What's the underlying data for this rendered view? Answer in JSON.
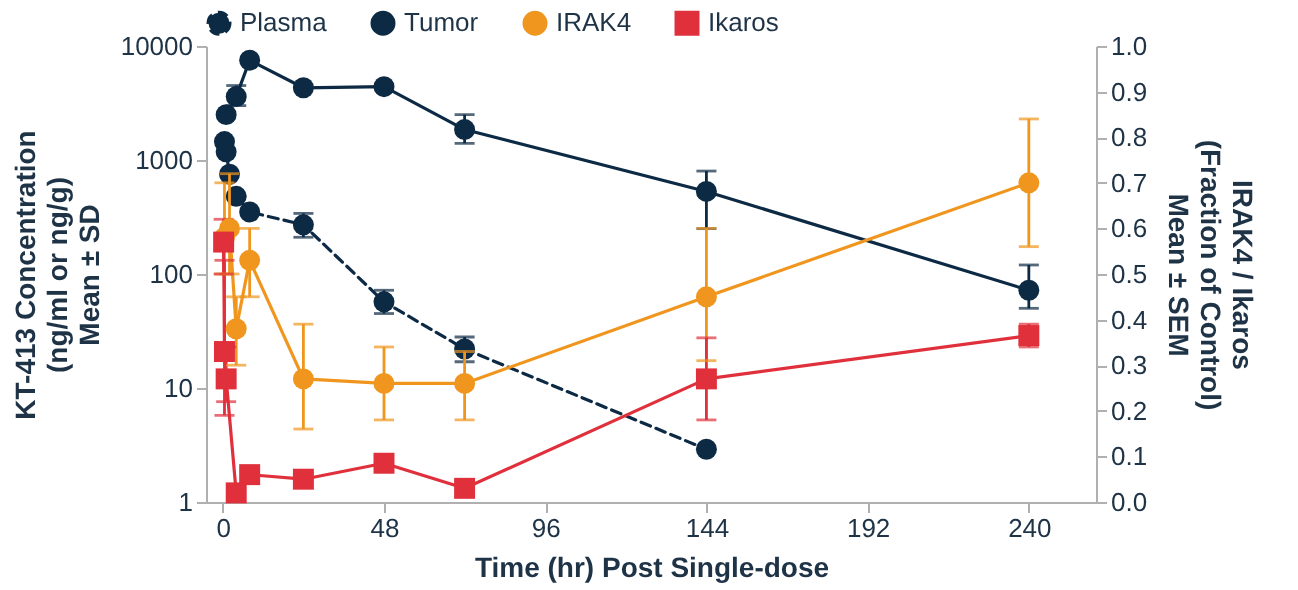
{
  "chart_data": {
    "type": "line",
    "xlabel": "Time (hr) Post Single-dose",
    "ylabel": "KT-413 Concentration\n(ng/ml or ng/g)\nMean ± SD",
    "y2label": "IRAK4 / Ikaros\n(Fraction of Control)\nMean ± SEM",
    "xlim": [
      -5,
      260
    ],
    "xticks": [
      0,
      48,
      96,
      144,
      192,
      240
    ],
    "ylim": [
      1,
      10000
    ],
    "yticks": [
      1,
      10,
      100,
      1000,
      10000
    ],
    "log": "y",
    "y2lim": [
      0,
      1
    ],
    "y2ticks": [
      {
        "value": 0,
        "label": "0.0"
      },
      {
        "value": 0.1,
        "label": "0.1"
      },
      {
        "value": 0.2,
        "label": "0.2"
      },
      {
        "value": 0.3,
        "label": "0.3"
      },
      {
        "value": 0.4,
        "label": "0.4"
      },
      {
        "value": 0.5,
        "label": "0.5"
      },
      {
        "value": 0.6,
        "label": "0.6"
      },
      {
        "value": 0.7,
        "label": "0.7"
      },
      {
        "value": 0.8,
        "label": "0.8"
      },
      {
        "value": 0.9,
        "label": "0.9"
      },
      {
        "value": 1,
        "label": "1.0"
      }
    ],
    "legend": "top",
    "grid": false,
    "series": [
      {
        "name": "Plasma",
        "color": "#0d2a45",
        "marker": "circle",
        "line_style": "dashed",
        "x": [
          0.5,
          1,
          2,
          4,
          8,
          24,
          48,
          72,
          144
        ],
        "values": [
          1450,
          1180,
          750,
          480,
          350,
          270,
          57,
          22,
          2.9
        ],
        "errors": [
          null,
          null,
          null,
          null,
          null,
          [
            210,
            340
          ],
          [
            45,
            72
          ],
          [
            17,
            28
          ],
          null
        ]
      },
      {
        "name": "Tumor",
        "color": "#0d2a45",
        "marker": "circle",
        "line_style": "solid",
        "x": [
          1,
          4,
          8,
          24,
          48,
          72,
          144,
          240
        ],
        "values": [
          2500,
          3600,
          7500,
          4300,
          4400,
          1850,
          530,
          72
        ],
        "errors": [
          null,
          [
            3000,
            4500
          ],
          null,
          null,
          null,
          [
            1400,
            2500
          ],
          [
            250,
            800
          ],
          [
            50,
            120
          ]
        ]
      },
      {
        "name": "IRAK4",
        "color": "#f0961e",
        "marker": "circle",
        "line_style": "solid",
        "axis": "y2",
        "x": [
          0.5,
          2,
          4,
          8,
          24,
          48,
          72,
          144,
          240
        ],
        "values": [
          0.58,
          0.6,
          0.38,
          0.53,
          0.27,
          0.26,
          0.26,
          0.45,
          0.7
        ],
        "errors": [
          [
            0.5,
            0.7
          ],
          [
            0.5,
            0.72
          ],
          [
            0.3,
            0.45
          ],
          [
            0.45,
            0.6
          ],
          [
            0.16,
            0.39
          ],
          [
            0.18,
            0.34
          ],
          [
            0.18,
            0.33
          ],
          [
            0.31,
            0.6
          ],
          [
            0.56,
            0.84
          ]
        ]
      },
      {
        "name": "Ikaros",
        "color": "#e0303c",
        "marker": "square",
        "line_style": "solid",
        "axis": "y2",
        "x": [
          0.25,
          0.5,
          1,
          4,
          8,
          24,
          48,
          72,
          144,
          240
        ],
        "values": [
          0.57,
          0.33,
          0.27,
          0.02,
          0.06,
          0.05,
          0.085,
          0.03,
          0.27,
          0.365
        ],
        "errors": [
          [
            0.5,
            0.62
          ],
          [
            0.19,
            0.53
          ],
          [
            0.22,
            0.34
          ],
          null,
          null,
          null,
          [
            0.07,
            0.1
          ],
          null,
          [
            0.18,
            0.36
          ],
          [
            0.34,
            0.39
          ]
        ]
      }
    ]
  }
}
